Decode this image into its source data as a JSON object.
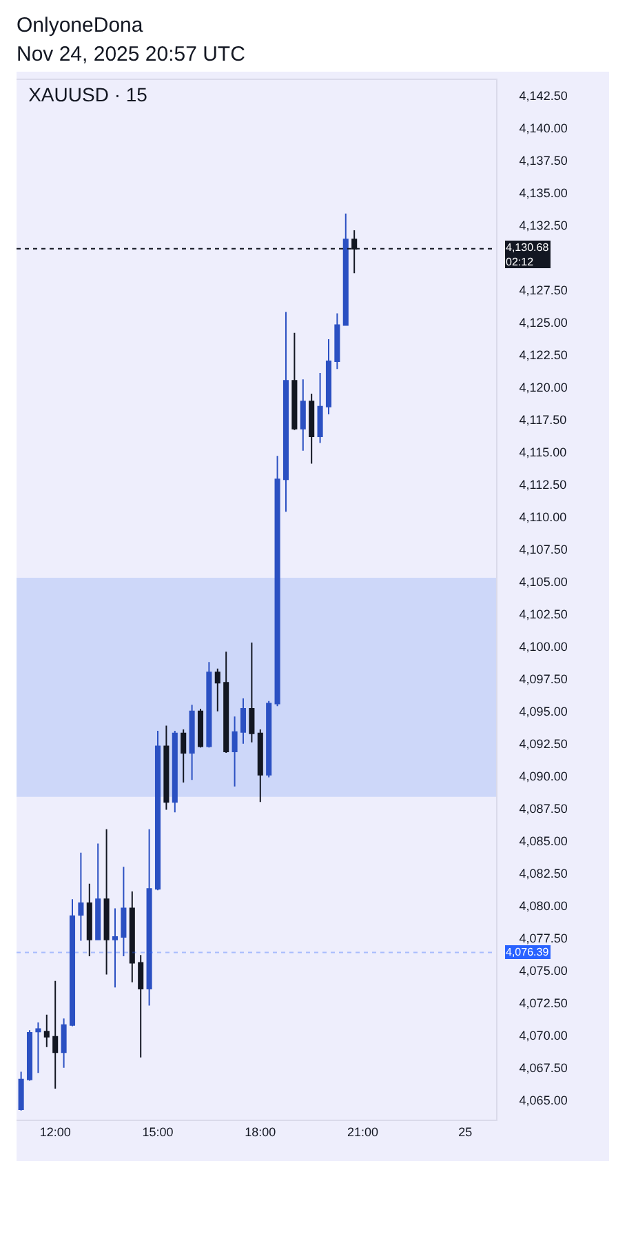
{
  "chart_data": {
    "type": "candlestick",
    "title": "XAUUSD · 15",
    "annotations": [
      "OnlyoneDona",
      "Nov 24, 2025 20:57 UTC"
    ],
    "series": [
      {
        "color": "#2b50c2",
        "x": [
          "2025-11-24T11:00",
          "2025-11-24T11:15",
          "2025-11-24T11:30",
          "2025-11-24T12:15",
          "2025-11-24T12:30",
          "2025-11-24T12:45",
          "2025-11-24T13:15",
          "2025-11-24T13:45",
          "2025-11-24T14:00",
          "2025-11-24T14:45",
          "2025-11-24T15:00",
          "2025-11-24T15:30",
          "2025-11-24T16:00",
          "2025-11-24T16:30",
          "2025-11-24T17:15",
          "2025-11-24T17:30",
          "2025-11-24T18:15",
          "2025-11-24T18:30",
          "2025-11-24T18:45",
          "2025-11-24T19:15",
          "2025-11-24T19:45",
          "2025-11-24T20:00",
          "2025-11-24T20:15",
          "2025-11-24T20:30"
        ],
        "ohlc": [
          [
            4064.3,
            4067.2,
            4064.2,
            4066.6
          ],
          [
            4066.6,
            4070.4,
            4066.5,
            4070.2
          ],
          [
            4070.3,
            4071,
            4067.1,
            4070.5
          ],
          [
            4068.7,
            4071.3,
            4067.5,
            4070.8
          ],
          [
            4070.8,
            4080.5,
            4070.7,
            4079.2
          ],
          [
            4079.3,
            4084.1,
            4077.3,
            4080.2
          ],
          [
            4077.4,
            4084.8,
            4077.4,
            4080.5
          ],
          [
            4077.4,
            4079.8,
            4073.7,
            4077.6
          ],
          [
            4077.6,
            4083,
            4076.1,
            4079.8
          ],
          [
            4073.6,
            4085.9,
            4072.3,
            4081.3
          ],
          [
            4081.3,
            4093.5,
            4081.2,
            4092.3
          ],
          [
            4088,
            4093.5,
            4087.2,
            4093.3
          ],
          [
            4091.8,
            4095.5,
            4089.7,
            4095
          ],
          [
            4092.3,
            4098.8,
            4092.2,
            4098
          ],
          [
            4091.9,
            4094.6,
            4089.2,
            4093.4
          ],
          [
            4093.4,
            4096,
            4092.5,
            4095.2
          ],
          [
            4090.1,
            4095.8,
            4089.9,
            4095.6
          ],
          [
            4095.6,
            4114.7,
            4095.4,
            4112.9
          ],
          [
            4112.9,
            4125.8,
            4110.4,
            4120.5
          ],
          [
            4116.8,
            4120.6,
            4115.1,
            4118.9
          ],
          [
            4116.2,
            4121.1,
            4115.7,
            4118.5
          ],
          [
            4118.5,
            4123.7,
            4117.9,
            4122
          ],
          [
            4122,
            4125.7,
            4121.4,
            4124.8
          ],
          [
            4124.8,
            4133.4,
            4124.8,
            4131.4
          ]
        ]
      },
      {
        "color": "#131722",
        "x": [
          "2025-11-24T11:45",
          "2025-11-24T12:00",
          "2025-11-24T13:00",
          "2025-11-24T13:30",
          "2025-11-24T14:15",
          "2025-11-24T14:30",
          "2025-11-24T15:15",
          "2025-11-24T15:45",
          "2025-11-24T16:15",
          "2025-11-24T16:45",
          "2025-11-24T17:00",
          "2025-11-24T17:45",
          "2025-11-24T18:00",
          "2025-11-24T19:00",
          "2025-11-24T19:30",
          "2025-11-24T20:45"
        ],
        "ohlc": [
          [
            4070.3,
            4071.6,
            4069.1,
            4069.9
          ],
          [
            4069.9,
            4074.2,
            4065.9,
            4068.7
          ],
          [
            4080.2,
            4081.7,
            4076.1,
            4077.4
          ],
          [
            4080.5,
            4085.9,
            4074.7,
            4077.4
          ],
          [
            4079.8,
            4081.1,
            4074.1,
            4075.6
          ],
          [
            4075.6,
            4076.2,
            4068.3,
            4073.6
          ],
          [
            4092.3,
            4093.9,
            4087.4,
            4088
          ],
          [
            4093.3,
            4093.6,
            4089.5,
            4091.8
          ],
          [
            4095,
            4095.2,
            4092.2,
            4092.3
          ],
          [
            4098,
            4098.3,
            4095,
            4097.2
          ],
          [
            4097.2,
            4099.6,
            4091.8,
            4091.9
          ],
          [
            4095.2,
            4100.3,
            4092.6,
            4093.3
          ],
          [
            4093.3,
            4093.6,
            4088,
            4090.1
          ],
          [
            4120.5,
            4124.2,
            4116.7,
            4116.8
          ],
          [
            4118.9,
            4119.5,
            4114.1,
            4116.2
          ],
          [
            4131.4,
            4132.1,
            4128.8,
            4130.68
          ]
        ]
      }
    ],
    "xlim": [
      "2025-11-24T10:52",
      "2025-11-25T00:54"
    ],
    "xticks": [
      {
        "value": "2025-11-24T12:00",
        "label": "12:00"
      },
      {
        "value": "2025-11-24T15:00",
        "label": "15:00"
      },
      {
        "value": "2025-11-24T18:00",
        "label": "18:00"
      },
      {
        "value": "2025-11-24T21:00",
        "label": "21:00"
      },
      {
        "value": "2025-11-25",
        "label": "25"
      }
    ],
    "ylim": [
      4063.5,
      4143.7
    ],
    "yticks": [
      {
        "value": 4065,
        "label": "4,065.00"
      },
      {
        "value": 4067.5,
        "label": "4,067.50"
      },
      {
        "value": 4070,
        "label": "4,070.00"
      },
      {
        "value": 4072.5,
        "label": "4,072.50"
      },
      {
        "value": 4075,
        "label": "4,075.00"
      },
      {
        "value": 4077.5,
        "label": "4,077.50"
      },
      {
        "value": 4080,
        "label": "4,080.00"
      },
      {
        "value": 4082.5,
        "label": "4,082.50"
      },
      {
        "value": 4085,
        "label": "4,085.00"
      },
      {
        "value": 4087.5,
        "label": "4,087.50"
      },
      {
        "value": 4090,
        "label": "4,090.00"
      },
      {
        "value": 4092.5,
        "label": "4,092.50"
      },
      {
        "value": 4095,
        "label": "4,095.00"
      },
      {
        "value": 4097.5,
        "label": "4,097.50"
      },
      {
        "value": 4100,
        "label": "4,100.00"
      },
      {
        "value": 4102.5,
        "label": "4,102.50"
      },
      {
        "value": 4105,
        "label": "4,105.00"
      },
      {
        "value": 4107.5,
        "label": "4,107.50"
      },
      {
        "value": 4110,
        "label": "4,110.00"
      },
      {
        "value": 4112.5,
        "label": "4,112.50"
      },
      {
        "value": 4115,
        "label": "4,115.00"
      },
      {
        "value": 4117.5,
        "label": "4,117.50"
      },
      {
        "value": 4120,
        "label": "4,120.00"
      },
      {
        "value": 4122.5,
        "label": "4,122.50"
      },
      {
        "value": 4125,
        "label": "4,125.00"
      },
      {
        "value": 4127.5,
        "label": "4,127.50"
      },
      {
        "value": 4132.5,
        "label": "4,132.50"
      },
      {
        "value": 4135,
        "label": "4,135.00"
      },
      {
        "value": 4137.5,
        "label": "4,137.50"
      },
      {
        "value": 4140,
        "label": "4,140.00"
      },
      {
        "value": 4142.5,
        "label": "4,142.50"
      }
    ],
    "ref_lines": [
      {
        "axis": "y",
        "value": 4130.68,
        "label": "4,130.68\n02:12",
        "color": "#131722",
        "line_style": "dotted"
      },
      {
        "axis": "y",
        "value": 4076.39,
        "label": "4,076.39",
        "color": "#2962ff",
        "line_style": "dotted"
      }
    ],
    "bands": [
      {
        "axis": "y",
        "from": 4088.4,
        "to": 4105.3,
        "color": "#c7d2f8"
      }
    ]
  }
}
